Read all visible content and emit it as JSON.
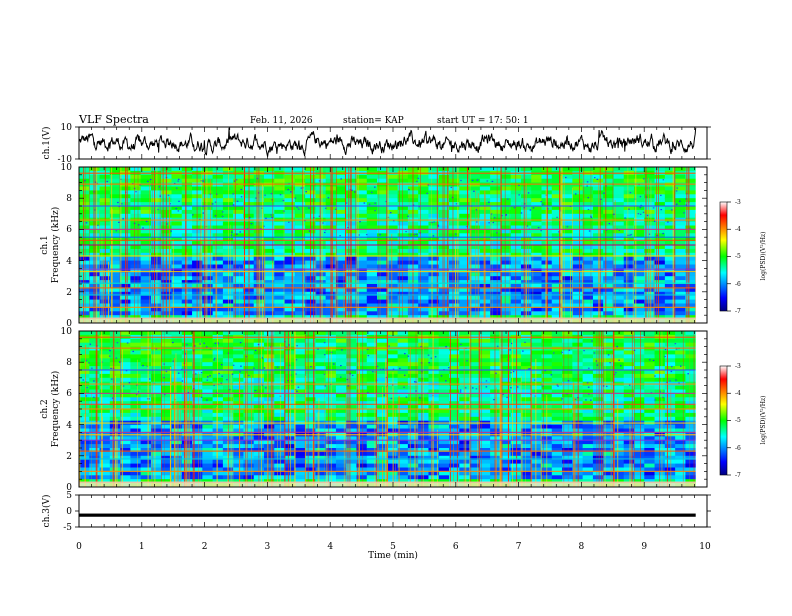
{
  "header": {
    "title": "VLF Spectra",
    "date": "Feb. 11, 2026",
    "station": "station= KAP",
    "start": "start  UT  =   17: 50: 1"
  },
  "chart_data": [
    {
      "id": "ch1-waveform",
      "type": "line",
      "ylabel": "ch.1(V)",
      "ylim": [
        -10,
        10
      ],
      "yticks": [
        {
          "v": 10,
          "label": "10"
        },
        {
          "v": -10,
          "label": "-10"
        }
      ],
      "xlim": [
        0,
        10
      ],
      "data_extent_min": 9.82,
      "noise_amplitude_v": 4
    },
    {
      "id": "ch1-spectrogram",
      "type": "heatmap",
      "ylabel_line1": "ch.1",
      "ylabel_line2": "Frequency  (kHz)",
      "ylim": [
        0,
        10
      ],
      "yticks": [
        {
          "v": 0,
          "label": "0"
        },
        {
          "v": 2,
          "label": "2"
        },
        {
          "v": 4,
          "label": "4"
        },
        {
          "v": 6,
          "label": "6"
        },
        {
          "v": 8,
          "label": "8"
        },
        {
          "v": 10,
          "label": "10"
        }
      ],
      "xlim": [
        0,
        10
      ],
      "data_extent_min": 9.82,
      "colorbar": {
        "label": "log(PSD)(V²/Hz)",
        "range": [
          -7,
          -3
        ],
        "ticks": [
          {
            "v": -3,
            "label": "-3"
          },
          {
            "v": -4,
            "label": "-4"
          },
          {
            "v": -5,
            "label": "-5"
          },
          {
            "v": -6,
            "label": "-6"
          },
          {
            "v": -7,
            "label": "-7"
          }
        ]
      },
      "bands_khz": [
        0.3,
        1.0,
        1.8,
        2.25,
        2.55,
        3.3,
        3.45,
        4.3,
        5.0,
        5.3,
        5.5,
        6.0,
        6.6,
        7.5,
        8.9,
        9.6
      ],
      "band_colors": [
        "#b0007c",
        "#ff8800",
        "#00cfe0",
        "#ff6000",
        "#00e0d0",
        "#ffd000",
        "#8a2be2",
        "#ffe000",
        "#b0007c",
        "#ff4000",
        "#0060ff",
        "#c03090",
        "#ff8800",
        "#3050ff",
        "#ff7000",
        "#ff5000"
      ]
    },
    {
      "id": "ch2-spectrogram",
      "type": "heatmap",
      "ylabel_line1": "ch.2",
      "ylabel_line2": "Frequency  (kHz)",
      "ylim": [
        0,
        10
      ],
      "yticks": [
        {
          "v": 0,
          "label": "0"
        },
        {
          "v": 2,
          "label": "2"
        },
        {
          "v": 4,
          "label": "4"
        },
        {
          "v": 6,
          "label": "6"
        },
        {
          "v": 8,
          "label": "8"
        },
        {
          "v": 10,
          "label": "10"
        }
      ],
      "xlim": [
        0,
        10
      ],
      "data_extent_min": 9.82,
      "colorbar": {
        "label": "log(PSD)(V²/Hz)",
        "range": [
          -7,
          -3
        ],
        "ticks": [
          {
            "v": -3,
            "label": "-3"
          },
          {
            "v": -4,
            "label": "-4"
          },
          {
            "v": -5,
            "label": "-5"
          },
          {
            "v": -6,
            "label": "-6"
          },
          {
            "v": -7,
            "label": "-7"
          }
        ]
      },
      "bands_khz": [
        0.3,
        1.0,
        1.8,
        2.3,
        3.0,
        3.35,
        3.5,
        4.1,
        5.0,
        5.3,
        6.0,
        6.6,
        7.5,
        8.9,
        9.6
      ],
      "band_colors": [
        "#b0007c",
        "#ff8800",
        "#00cfe0",
        "#ff6000",
        "#8a2be2",
        "#ffd000",
        "#c03090",
        "#ffe000",
        "#ff8800",
        "#ff4000",
        "#c03090",
        "#ff8800",
        "#3050ff",
        "#ff7000",
        "#ff5000"
      ]
    },
    {
      "id": "ch3-waveform",
      "type": "line",
      "ylabel": "ch.3(V)",
      "ylim": [
        -5,
        5
      ],
      "yticks": [
        {
          "v": 5,
          "label": "5"
        },
        {
          "v": 0,
          "label": "0"
        },
        {
          "v": -5,
          "label": "-5"
        }
      ],
      "xlim": [
        0,
        10
      ],
      "xlabel": "Time  (min)",
      "xticks": [
        {
          "v": 0,
          "label": "0"
        },
        {
          "v": 1,
          "label": "1"
        },
        {
          "v": 2,
          "label": "2"
        },
        {
          "v": 3,
          "label": "3"
        },
        {
          "v": 4,
          "label": "4"
        },
        {
          "v": 5,
          "label": "5"
        },
        {
          "v": 6,
          "label": "6"
        },
        {
          "v": 7,
          "label": "7"
        },
        {
          "v": 8,
          "label": "8"
        },
        {
          "v": 9,
          "label": "9"
        },
        {
          "v": 10,
          "label": "10"
        }
      ],
      "data_extent_min": 9.82,
      "level_v": -1.3,
      "band_half_width_v": 0.5
    }
  ]
}
